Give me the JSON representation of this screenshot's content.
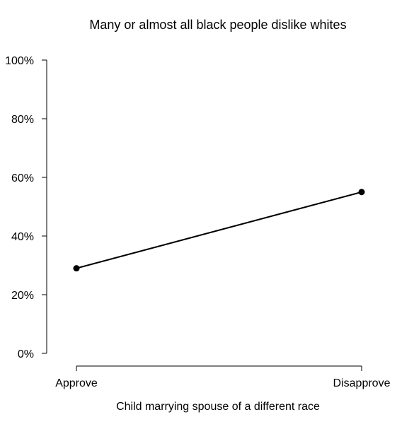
{
  "chart_data": {
    "type": "line",
    "title": "Many or almost all black people dislike whites",
    "xlabel": "Child marrying spouse of a different race",
    "ylabel": "",
    "categories": [
      "Approve",
      "Disapprove"
    ],
    "series": [
      {
        "values": [
          0.29,
          0.55
        ]
      }
    ],
    "ylim": [
      0,
      1
    ],
    "yticks": [
      0,
      0.2,
      0.4,
      0.6,
      0.8,
      1.0
    ],
    "ytick_labels": [
      "0%",
      "20%",
      "40%",
      "60%",
      "80%",
      "100%"
    ],
    "grid": false,
    "legend": "none",
    "colors": {
      "line": "#000000",
      "point": "#000000",
      "axis": "#000000"
    }
  }
}
